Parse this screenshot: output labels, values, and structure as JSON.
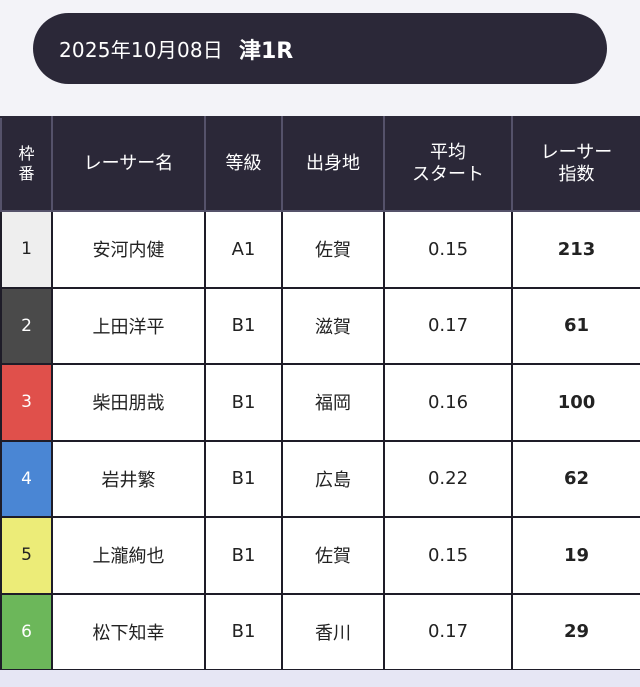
{
  "header": {
    "date": "2025年10月08日",
    "race": "津1R"
  },
  "table": {
    "columns": {
      "waku": [
        "枠",
        "番"
      ],
      "racer_name": [
        "レーサー名"
      ],
      "grade": [
        "等級"
      ],
      "origin": [
        "出身地"
      ],
      "avg_start": [
        "平均",
        "スタート"
      ],
      "racer_index": [
        "レーサー",
        "指数"
      ]
    },
    "rows": [
      {
        "waku": "1",
        "waku_color": "#eeeeee",
        "waku_text_color": "#222222",
        "name": "安河内健",
        "grade": "A1",
        "origin": "佐賀",
        "avg_start": "0.15",
        "index": "213"
      },
      {
        "waku": "2",
        "waku_color": "#4a4a4a",
        "waku_text_color": "#ffffff",
        "name": "上田洋平",
        "grade": "B1",
        "origin": "滋賀",
        "avg_start": "0.17",
        "index": "61"
      },
      {
        "waku": "3",
        "waku_color": "#e0504b",
        "waku_text_color": "#ffffff",
        "name": "柴田朋哉",
        "grade": "B1",
        "origin": "福岡",
        "avg_start": "0.16",
        "index": "100"
      },
      {
        "waku": "4",
        "waku_color": "#4a86d4",
        "waku_text_color": "#ffffff",
        "name": "岩井繁",
        "grade": "B1",
        "origin": "広島",
        "avg_start": "0.22",
        "index": "62"
      },
      {
        "waku": "5",
        "waku_color": "#ecec78",
        "waku_text_color": "#222222",
        "name": "上瀧絢也",
        "grade": "B1",
        "origin": "佐賀",
        "avg_start": "0.15",
        "index": "19"
      },
      {
        "waku": "6",
        "waku_color": "#6cb75a",
        "waku_text_color": "#ffffff",
        "name": "松下知幸",
        "grade": "B1",
        "origin": "香川",
        "avg_start": "0.17",
        "index": "29"
      }
    ]
  },
  "colors": {
    "header_bg": "#2b2838",
    "page_bg": "#f3f3f8"
  }
}
